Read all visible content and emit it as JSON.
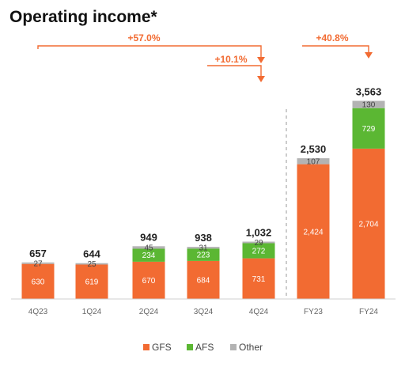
{
  "colors": {
    "GFS": "#F26B32",
    "AFS": "#5BB733",
    "Other": "#B3B3B3",
    "accent": "#F26B32"
  },
  "chart_data": {
    "type": "bar",
    "stacked": true,
    "title": "Operating income*",
    "categories": [
      "4Q23",
      "1Q24",
      "2Q24",
      "3Q24",
      "4Q24",
      "FY23",
      "FY24"
    ],
    "series": [
      {
        "name": "GFS",
        "values": [
          630,
          619,
          670,
          684,
          731,
          2424,
          2704
        ]
      },
      {
        "name": "AFS",
        "values": [
          null,
          null,
          234,
          223,
          272,
          null,
          729
        ]
      },
      {
        "name": "Other",
        "values": [
          27,
          25,
          45,
          31,
          29,
          107,
          130
        ]
      }
    ],
    "totals": [
      "657",
      "644",
      "949",
      "938",
      "1,032",
      "2,530",
      "3,563"
    ],
    "segment_labels": {
      "GFS": [
        "630",
        "619",
        "670",
        "684",
        "731",
        "2,424",
        "2,704"
      ],
      "AFS": [
        "",
        "",
        "234",
        "223",
        "272",
        "",
        "729"
      ],
      "Other": [
        "27",
        "25",
        "45",
        "31",
        "29",
        "107",
        "130"
      ]
    },
    "annotations": [
      {
        "text": "+57.0%",
        "from": "4Q23",
        "to": "4Q24"
      },
      {
        "text": "+10.1%",
        "from": "3Q24",
        "to": "4Q24"
      },
      {
        "text": "+40.8%",
        "from": "FY23",
        "to": "FY24"
      }
    ],
    "legend": [
      "GFS",
      "AFS",
      "Other"
    ],
    "legend_position": "bottom"
  }
}
